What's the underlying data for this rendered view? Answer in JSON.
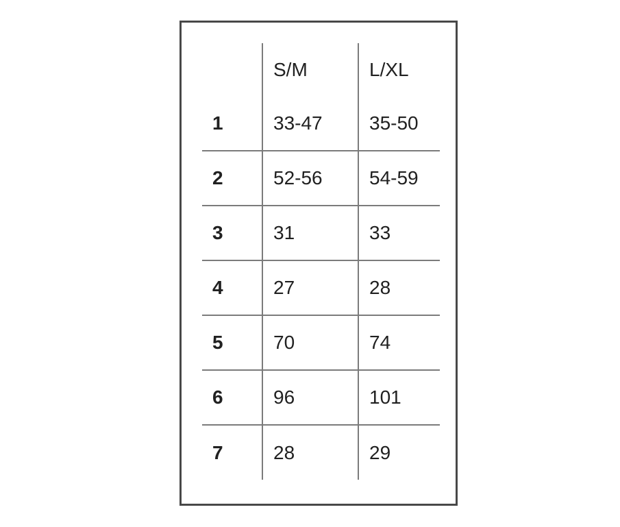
{
  "chart_data": {
    "type": "table",
    "title": "",
    "columns": [
      "",
      "S/M",
      "L/XL"
    ],
    "rows": [
      [
        "1",
        "33-47",
        "35-50"
      ],
      [
        "2",
        "52-56",
        "54-59"
      ],
      [
        "3",
        "31",
        "33"
      ],
      [
        "4",
        "27",
        "28"
      ],
      [
        "5",
        "70",
        "74"
      ],
      [
        "6",
        "96",
        "101"
      ],
      [
        "7",
        "28",
        "29"
      ]
    ]
  },
  "colors": {
    "background": "#ffffff",
    "outer_border": "#484848",
    "grid_line": "#7b7b7b",
    "text": "#212121"
  }
}
